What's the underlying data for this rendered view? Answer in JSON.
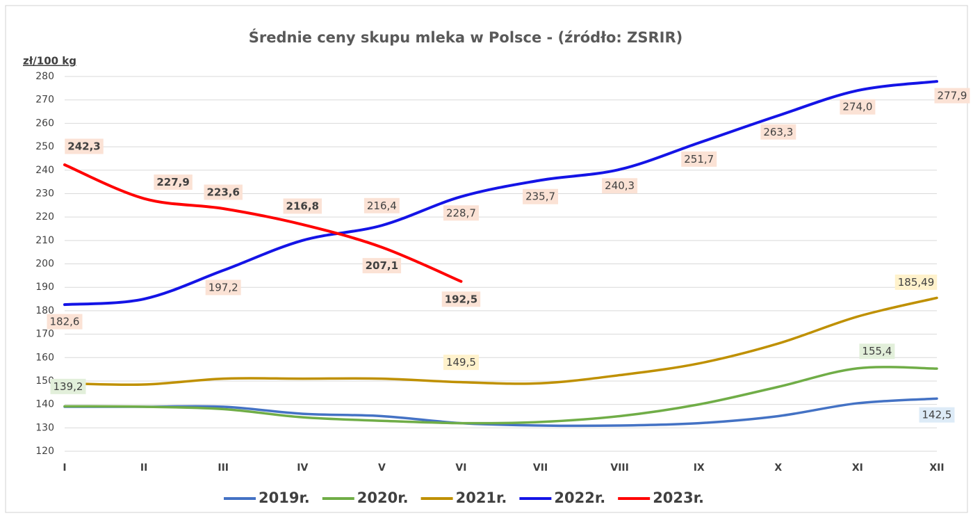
{
  "chart_data": {
    "type": "line",
    "title": "Średnie ceny skupu mleka w Polsce - (źródło: ZSRIR)",
    "y_label": "zł/100 kg",
    "categories": [
      "I",
      "II",
      "III",
      "IV",
      "V",
      "VI",
      "VII",
      "VIII",
      "IX",
      "X",
      "XI",
      "XII"
    ],
    "ylim": [
      120,
      280
    ],
    "yticks": [
      120,
      130,
      140,
      150,
      160,
      170,
      180,
      190,
      200,
      210,
      220,
      230,
      240,
      250,
      260,
      270,
      280
    ],
    "grid": true,
    "legend": "bottom",
    "series": [
      {
        "name": "2019r.",
        "color": "#4472c4",
        "values": [
          139,
          139,
          139,
          136,
          135,
          132,
          131,
          131,
          132,
          135,
          140.5,
          142.5
        ],
        "value_labels": [
          null,
          null,
          null,
          null,
          null,
          null,
          null,
          null,
          null,
          null,
          null,
          "142,5"
        ]
      },
      {
        "name": "2020r.",
        "color": "#70ad47",
        "values": [
          139.2,
          139,
          138,
          134.5,
          133,
          132,
          132.5,
          135,
          140,
          147.5,
          155.4,
          155.3
        ],
        "value_labels": [
          "139,2",
          null,
          null,
          null,
          null,
          null,
          null,
          null,
          null,
          null,
          "155,4",
          null
        ]
      },
      {
        "name": "2021r.",
        "color": "#bf9000",
        "values": [
          149,
          148.5,
          151,
          151,
          151,
          149.5,
          149,
          152.5,
          157.5,
          166,
          177.5,
          185.49
        ],
        "value_labels": [
          null,
          null,
          null,
          null,
          null,
          "149,5",
          null,
          null,
          null,
          null,
          null,
          "185,49"
        ]
      },
      {
        "name": "2022r.",
        "color": "#1414e6",
        "values": [
          182.6,
          185,
          197.2,
          210,
          216.4,
          228.7,
          235.7,
          240.3,
          251.7,
          263.3,
          274.0,
          277.9
        ],
        "value_labels": [
          "182,6",
          null,
          "197,2",
          null,
          "216,4",
          "228,7",
          "235,7",
          "240,3",
          "251,7",
          "263,3",
          "274,0",
          "277,9"
        ]
      },
      {
        "name": "2023r.",
        "color": "#ff0000",
        "values": [
          242.3,
          227.9,
          223.6,
          216.8,
          207.1,
          192.5,
          null,
          null,
          null,
          null,
          null,
          null
        ],
        "value_labels": [
          "242,3",
          "227,9",
          "223,6",
          "216,8",
          "207,1",
          "192,5",
          null,
          null,
          null,
          null,
          null,
          null
        ]
      }
    ]
  }
}
